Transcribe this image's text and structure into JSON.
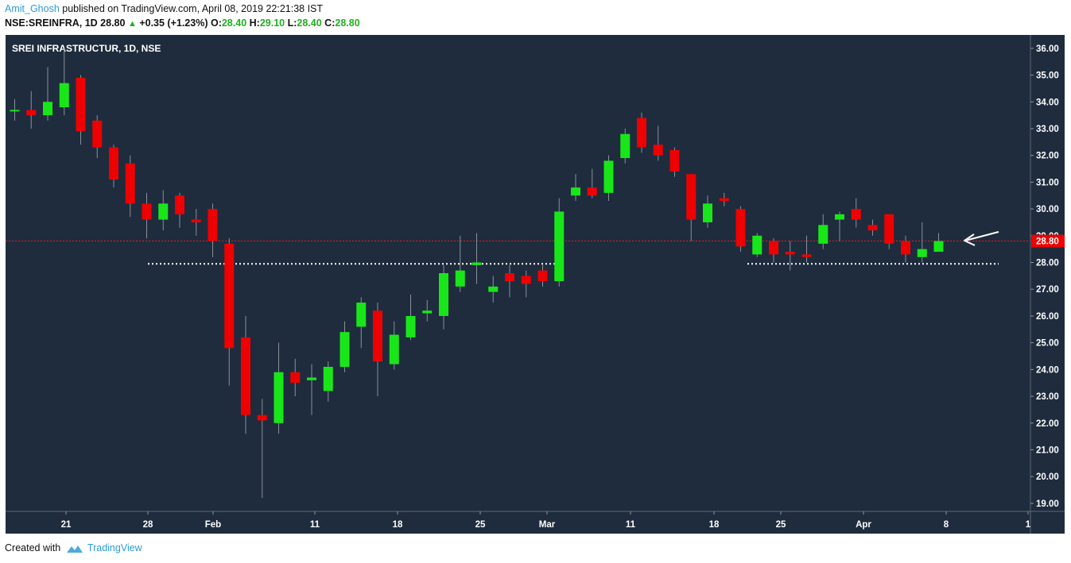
{
  "header": {
    "author": "Amit_Ghosh",
    "published": "published on TradingView.com, April 08, 2019 22:21:38 IST",
    "symbol": "NSE:SREINFRA, 1D",
    "last": "28.80",
    "change": "+0.35 (+1.23%)",
    "o_label": "O:",
    "o": "28.40",
    "h_label": "H:",
    "h": "29.10",
    "l_label": "L:",
    "l": "28.40",
    "c_label": "C:",
    "c": "28.80"
  },
  "footer": {
    "created_with": "Created with",
    "brand": "TradingView"
  },
  "colors": {
    "background": "#1e2c3d",
    "up": "#19e619",
    "down": "#ee0000",
    "wick": "#8a9099",
    "price_line": "#e02020",
    "support": "#ffffff",
    "axis_text": "#ffffff",
    "price_label": "#ee0000"
  },
  "chart_data": {
    "type": "candlestick",
    "title": "SREI INFRASTRUCTUR, 1D, NSE",
    "y_range": [
      18.7,
      36.5
    ],
    "y_ticks": [
      "19.00",
      "20.00",
      "21.00",
      "22.00",
      "23.00",
      "24.00",
      "25.00",
      "26.00",
      "27.00",
      "28.00",
      "29.00",
      "30.00",
      "31.00",
      "32.00",
      "33.00",
      "34.00",
      "35.00",
      "36.00"
    ],
    "x_tick_labels": [
      "21",
      "28",
      "Feb",
      "11",
      "18",
      "25",
      "Mar",
      "11",
      "18",
      "25",
      "Apr",
      "8",
      "1"
    ],
    "last_price": 28.8,
    "last_price_label": "28.80",
    "support_level": 27.95,
    "annotation": "arrow-pointing-at-last-candle",
    "candles": [
      {
        "o": 33.7,
        "h": 34.1,
        "l": 33.3,
        "c": 33.7
      },
      {
        "o": 33.7,
        "h": 34.4,
        "l": 33.0,
        "c": 33.5
      },
      {
        "o": 33.5,
        "h": 35.3,
        "l": 33.3,
        "c": 34.0
      },
      {
        "o": 33.8,
        "h": 36.0,
        "l": 33.5,
        "c": 34.7
      },
      {
        "o": 34.9,
        "h": 35.0,
        "l": 32.4,
        "c": 32.9
      },
      {
        "o": 33.3,
        "h": 33.5,
        "l": 31.9,
        "c": 32.3
      },
      {
        "o": 32.3,
        "h": 32.4,
        "l": 30.8,
        "c": 31.1
      },
      {
        "o": 31.7,
        "h": 32.0,
        "l": 29.7,
        "c": 30.2
      },
      {
        "o": 30.2,
        "h": 30.6,
        "l": 28.9,
        "c": 29.6
      },
      {
        "o": 29.6,
        "h": 30.7,
        "l": 29.2,
        "c": 30.2
      },
      {
        "o": 30.5,
        "h": 30.6,
        "l": 29.3,
        "c": 29.8
      },
      {
        "o": 29.6,
        "h": 30.0,
        "l": 29.0,
        "c": 29.5
      },
      {
        "o": 30.0,
        "h": 30.2,
        "l": 28.2,
        "c": 28.8
      },
      {
        "o": 28.7,
        "h": 28.9,
        "l": 23.4,
        "c": 24.8
      },
      {
        "o": 25.2,
        "h": 26.0,
        "l": 21.6,
        "c": 22.3
      },
      {
        "o": 22.3,
        "h": 22.9,
        "l": 19.2,
        "c": 22.1
      },
      {
        "o": 22.0,
        "h": 25.0,
        "l": 21.6,
        "c": 23.9
      },
      {
        "o": 23.9,
        "h": 24.4,
        "l": 23.0,
        "c": 23.5
      },
      {
        "o": 23.6,
        "h": 24.2,
        "l": 22.3,
        "c": 23.7
      },
      {
        "o": 23.2,
        "h": 24.3,
        "l": 22.8,
        "c": 24.1
      },
      {
        "o": 24.1,
        "h": 25.8,
        "l": 23.9,
        "c": 25.4
      },
      {
        "o": 25.6,
        "h": 26.7,
        "l": 24.8,
        "c": 26.5
      },
      {
        "o": 26.2,
        "h": 26.5,
        "l": 23.0,
        "c": 24.3
      },
      {
        "o": 24.2,
        "h": 25.8,
        "l": 24.0,
        "c": 25.3
      },
      {
        "o": 25.2,
        "h": 26.8,
        "l": 25.1,
        "c": 26.0
      },
      {
        "o": 26.1,
        "h": 26.6,
        "l": 25.8,
        "c": 26.2
      },
      {
        "o": 26.0,
        "h": 27.9,
        "l": 25.5,
        "c": 27.6
      },
      {
        "o": 27.1,
        "h": 29.0,
        "l": 26.9,
        "c": 27.7
      },
      {
        "o": 27.9,
        "h": 29.1,
        "l": 27.2,
        "c": 28.0
      },
      {
        "o": 26.9,
        "h": 27.5,
        "l": 26.5,
        "c": 27.1
      },
      {
        "o": 27.6,
        "h": 27.9,
        "l": 26.7,
        "c": 27.3
      },
      {
        "o": 27.5,
        "h": 27.7,
        "l": 26.7,
        "c": 27.2
      },
      {
        "o": 27.7,
        "h": 27.9,
        "l": 27.1,
        "c": 27.3
      },
      {
        "o": 27.3,
        "h": 30.4,
        "l": 27.1,
        "c": 29.9
      },
      {
        "o": 30.5,
        "h": 31.3,
        "l": 30.3,
        "c": 30.8
      },
      {
        "o": 30.8,
        "h": 31.5,
        "l": 30.4,
        "c": 30.5
      },
      {
        "o": 30.6,
        "h": 32.0,
        "l": 30.3,
        "c": 31.8
      },
      {
        "o": 31.9,
        "h": 33.0,
        "l": 31.7,
        "c": 32.8
      },
      {
        "o": 33.4,
        "h": 33.6,
        "l": 32.1,
        "c": 32.3
      },
      {
        "o": 32.4,
        "h": 33.1,
        "l": 31.8,
        "c": 32.0
      },
      {
        "o": 32.2,
        "h": 32.3,
        "l": 31.2,
        "c": 31.4
      },
      {
        "o": 31.3,
        "h": 31.3,
        "l": 28.8,
        "c": 29.6
      },
      {
        "o": 29.5,
        "h": 30.5,
        "l": 29.3,
        "c": 30.2
      },
      {
        "o": 30.4,
        "h": 30.6,
        "l": 30.1,
        "c": 30.3
      },
      {
        "o": 30.0,
        "h": 30.1,
        "l": 28.4,
        "c": 28.6
      },
      {
        "o": 28.3,
        "h": 29.1,
        "l": 28.2,
        "c": 29.0
      },
      {
        "o": 28.8,
        "h": 28.9,
        "l": 28.0,
        "c": 28.3
      },
      {
        "o": 28.4,
        "h": 28.8,
        "l": 27.7,
        "c": 28.3
      },
      {
        "o": 28.3,
        "h": 29.0,
        "l": 28.0,
        "c": 28.2
      },
      {
        "o": 28.7,
        "h": 29.8,
        "l": 28.5,
        "c": 29.4
      },
      {
        "o": 29.6,
        "h": 29.9,
        "l": 28.8,
        "c": 29.8
      },
      {
        "o": 30.0,
        "h": 30.4,
        "l": 29.3,
        "c": 29.6
      },
      {
        "o": 29.4,
        "h": 29.6,
        "l": 29.0,
        "c": 29.2
      },
      {
        "o": 29.8,
        "h": 29.8,
        "l": 28.5,
        "c": 28.7
      },
      {
        "o": 28.8,
        "h": 29.0,
        "l": 28.0,
        "c": 28.3
      },
      {
        "o": 28.2,
        "h": 29.5,
        "l": 28.0,
        "c": 28.5
      },
      {
        "o": 28.4,
        "h": 29.1,
        "l": 28.4,
        "c": 28.8
      }
    ]
  }
}
